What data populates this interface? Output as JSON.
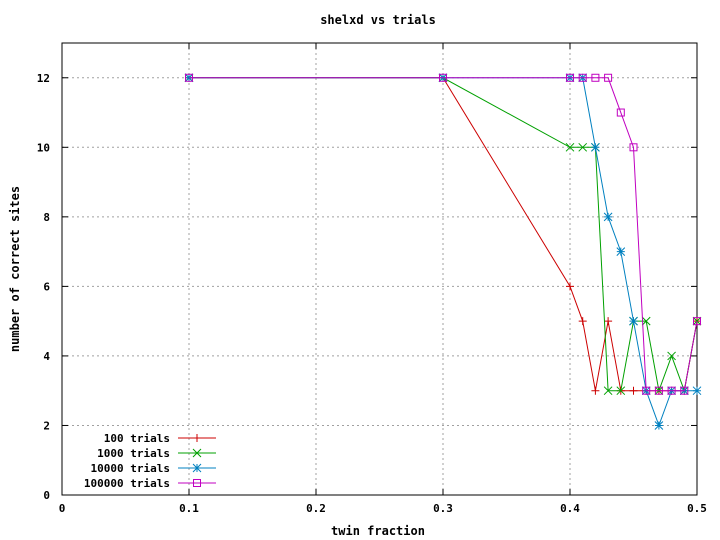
{
  "chart_data": {
    "type": "line",
    "title": "shelxd vs trials",
    "xlabel": "twin fraction",
    "ylabel": "number of correct sites",
    "xlim": [
      0,
      0.5
    ],
    "ylim": [
      0,
      13
    ],
    "x_ticks": [
      0,
      0.1,
      0.2,
      0.3,
      0.4,
      0.5
    ],
    "x_tick_labels": [
      "0",
      "0.1",
      "0.2",
      "0.3",
      "0.4",
      "0.5"
    ],
    "y_ticks": [
      0,
      2,
      4,
      6,
      8,
      10,
      12
    ],
    "y_tick_labels": [
      "0",
      "2",
      "4",
      "6",
      "8",
      "10",
      "12"
    ],
    "grid": true,
    "legend_position": "bottom-left",
    "series": [
      {
        "name": "100 trials",
        "color": "#cc0000",
        "marker": "plus",
        "points": [
          [
            0.1,
            12
          ],
          [
            0.3,
            12
          ],
          [
            0.4,
            6
          ],
          [
            0.41,
            5
          ],
          [
            0.42,
            3
          ],
          [
            0.43,
            5
          ],
          [
            0.44,
            3
          ],
          [
            0.45,
            3
          ],
          [
            0.46,
            3
          ],
          [
            0.47,
            3
          ],
          [
            0.48,
            3
          ],
          [
            0.49,
            3
          ],
          [
            0.5,
            5
          ]
        ]
      },
      {
        "name": "1000 trials",
        "color": "#00a000",
        "marker": "cross",
        "points": [
          [
            0.1,
            12
          ],
          [
            0.3,
            12
          ],
          [
            0.4,
            10
          ],
          [
            0.41,
            10
          ],
          [
            0.42,
            10
          ],
          [
            0.43,
            3
          ],
          [
            0.44,
            3
          ],
          [
            0.45,
            5
          ],
          [
            0.46,
            5
          ],
          [
            0.47,
            3
          ],
          [
            0.48,
            4
          ],
          [
            0.49,
            3
          ],
          [
            0.5,
            5
          ]
        ]
      },
      {
        "name": "10000 trials",
        "color": "#0080c0",
        "marker": "star",
        "points": [
          [
            0.1,
            12
          ],
          [
            0.3,
            12
          ],
          [
            0.4,
            12
          ],
          [
            0.41,
            12
          ],
          [
            0.42,
            10
          ],
          [
            0.43,
            8
          ],
          [
            0.44,
            7
          ],
          [
            0.45,
            5
          ],
          [
            0.46,
            3
          ],
          [
            0.47,
            2
          ],
          [
            0.48,
            3
          ],
          [
            0.49,
            3
          ],
          [
            0.5,
            3
          ]
        ]
      },
      {
        "name": "100000 trials",
        "color": "#c000c0",
        "marker": "square",
        "points": [
          [
            0.1,
            12
          ],
          [
            0.3,
            12
          ],
          [
            0.4,
            12
          ],
          [
            0.41,
            12
          ],
          [
            0.42,
            12
          ],
          [
            0.43,
            12
          ],
          [
            0.44,
            11
          ],
          [
            0.45,
            10
          ],
          [
            0.46,
            3
          ],
          [
            0.47,
            3
          ],
          [
            0.48,
            3
          ],
          [
            0.49,
            3
          ],
          [
            0.5,
            5
          ]
        ]
      }
    ]
  }
}
